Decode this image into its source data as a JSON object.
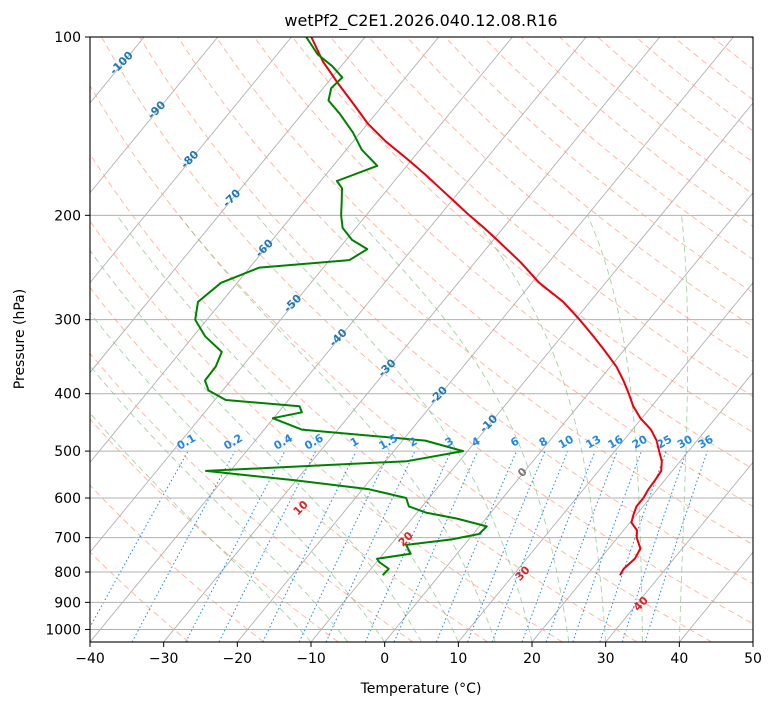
{
  "chart_data": {
    "type": "line",
    "subtype": "skew-t log-p diagram",
    "title": "wetPf2_C2E1.2026.040.12.08.R16",
    "xlabel": "Temperature (°C)",
    "ylabel": "Pressure (hPa)",
    "xlim": [
      -40,
      50
    ],
    "ylim": [
      1050,
      100
    ],
    "y_scale": "log",
    "grid": true,
    "x_ticks": [
      -40,
      -30,
      -20,
      -10,
      0,
      10,
      20,
      30,
      40,
      50
    ],
    "y_ticks": [
      100,
      200,
      300,
      400,
      500,
      600,
      700,
      800,
      900,
      1000
    ],
    "isotherm_labels": [
      "-100",
      "-90",
      "-80",
      "-70",
      "-60",
      "-50",
      "-40",
      "-30",
      "-20",
      "-10",
      "0"
    ],
    "dry_adiabat_labels": [
      "10",
      "20",
      "30",
      "40"
    ],
    "mixing_ratio_labels": [
      "0.1",
      "0.2",
      "0.4",
      "0.6",
      "1",
      "1.5",
      "2",
      "3",
      "4",
      "6",
      "8",
      "10",
      "13",
      "16",
      "20",
      "25",
      "30",
      "36"
    ],
    "colors": {
      "temperature": "#e8000b",
      "dewpoint": "#008000",
      "isotherm_label": "#1f77b4",
      "dry_adiabat": "#ff9a7a",
      "dry_adiabat_label": "#d62728",
      "moist_adiabat": "#7fbf7f",
      "mixing_ratio": "#1e88e5",
      "grid": "#b0b0b0"
    },
    "series": [
      {
        "key": "temperature",
        "points": [
          [
            24.5,
            810
          ],
          [
            24.3,
            790
          ],
          [
            24.7,
            760
          ],
          [
            24.3,
            730
          ],
          [
            22.6,
            700
          ],
          [
            21.8,
            680
          ],
          [
            20.2,
            660
          ],
          [
            19.6,
            640
          ],
          [
            19.1,
            620
          ],
          [
            19.1,
            600
          ],
          [
            18.8,
            580
          ],
          [
            18.7,
            560
          ],
          [
            18.5,
            540
          ],
          [
            17.5,
            520
          ],
          [
            16.0,
            500
          ],
          [
            14.5,
            480
          ],
          [
            12.5,
            460
          ],
          [
            9.8,
            440
          ],
          [
            7.5,
            420
          ],
          [
            5.5,
            400
          ],
          [
            3.3,
            380
          ],
          [
            0.8,
            360
          ],
          [
            -2.3,
            340
          ],
          [
            -5.7,
            320
          ],
          [
            -9.4,
            300
          ],
          [
            -13.6,
            280
          ],
          [
            -19.0,
            260
          ],
          [
            -23.8,
            240
          ],
          [
            -29.5,
            220
          ],
          [
            -32.6,
            210
          ],
          [
            -36.0,
            200
          ],
          [
            -39.4,
            190
          ],
          [
            -43.0,
            180
          ],
          [
            -46.8,
            170
          ],
          [
            -51.0,
            160
          ],
          [
            -55.6,
            150
          ],
          [
            -60.0,
            140
          ],
          [
            -64.0,
            130
          ],
          [
            -68.4,
            120
          ],
          [
            -73.0,
            110
          ],
          [
            -77.3,
            100
          ]
        ]
      },
      {
        "key": "dewpoint",
        "points": [
          [
            -7.7,
            810
          ],
          [
            -7.6,
            790
          ],
          [
            -9.6,
            770
          ],
          [
            -10.3,
            760
          ],
          [
            -6.3,
            745
          ],
          [
            -7.9,
            720
          ],
          [
            -2.4,
            705
          ],
          [
            0.8,
            690
          ],
          [
            1.0,
            670
          ],
          [
            -3.9,
            650
          ],
          [
            -8.8,
            635
          ],
          [
            -11.8,
            620
          ],
          [
            -13.1,
            600
          ],
          [
            -19.1,
            580
          ],
          [
            -30.2,
            560
          ],
          [
            -43.3,
            540
          ],
          [
            -17.1,
            520
          ],
          [
            -10.6,
            500
          ],
          [
            -16.9,
            480
          ],
          [
            -34.9,
            460
          ],
          [
            -40.1,
            440
          ],
          [
            -36.8,
            430
          ],
          [
            -37.8,
            420
          ],
          [
            -48.5,
            410
          ],
          [
            -51.9,
            395
          ],
          [
            -53.5,
            380
          ],
          [
            -53.6,
            360
          ],
          [
            -54.4,
            340
          ],
          [
            -58.4,
            320
          ],
          [
            -61.6,
            300
          ],
          [
            -63.2,
            280
          ],
          [
            -62.2,
            260
          ],
          [
            -58.7,
            245
          ],
          [
            -47.3,
            238
          ],
          [
            -46.1,
            228
          ],
          [
            -49.2,
            220
          ],
          [
            -51.8,
            210
          ],
          [
            -53.4,
            200
          ],
          [
            -54.8,
            190
          ],
          [
            -56.3,
            180
          ],
          [
            -57.8,
            175
          ],
          [
            -54.0,
            165
          ],
          [
            -57.9,
            155
          ],
          [
            -61.0,
            145
          ],
          [
            -64.8,
            135
          ],
          [
            -67.9,
            128
          ],
          [
            -68.9,
            122
          ],
          [
            -68.6,
            117
          ],
          [
            -71.2,
            112
          ],
          [
            -74.5,
            107
          ],
          [
            -78.0,
            100
          ]
        ]
      }
    ]
  }
}
